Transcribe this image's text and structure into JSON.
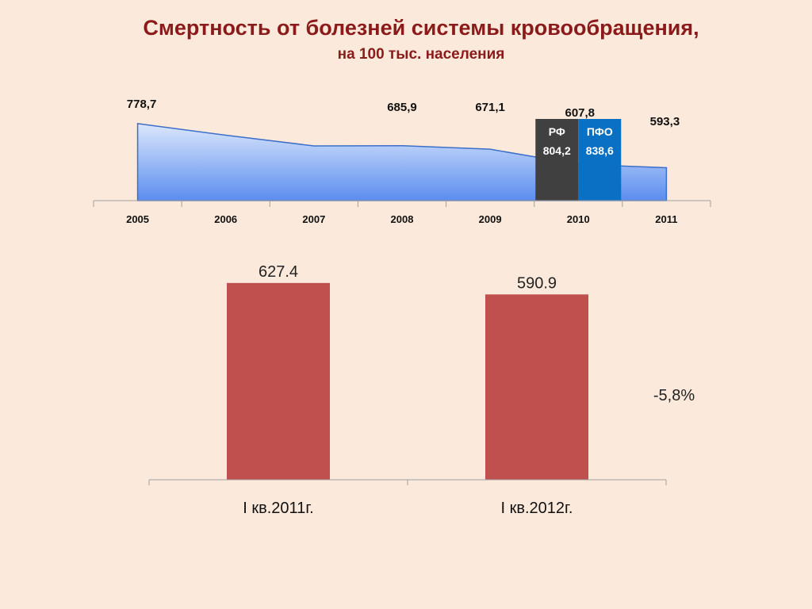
{
  "title": "Смертность от болезней системы кровообращения,",
  "subtitle": "на 100 тыс. населения",
  "chart_data": [
    {
      "type": "area",
      "categories": [
        "2005",
        "2006",
        "2007",
        "2008",
        "2009",
        "2010",
        "2011"
      ],
      "values": [
        778.7,
        730.0,
        685.0,
        685.9,
        671.1,
        607.8,
        593.3
      ],
      "data_labels": [
        "778,7",
        "",
        "",
        "685,9",
        "671,1",
        "607,8",
        "593,3"
      ],
      "color": "#5b8def",
      "grid": false,
      "comparison_bars": [
        {
          "category": "2010",
          "name": "РФ",
          "value": 804.2,
          "value_label": "804,2",
          "color": "#404040"
        },
        {
          "category": "2010",
          "name": "ПФО",
          "value": 838.6,
          "value_label": "838,6",
          "color": "#0a70c4"
        }
      ]
    },
    {
      "type": "bar",
      "categories": [
        "I кв.2011г.",
        "I кв.2012г."
      ],
      "values": [
        627.4,
        590.9
      ],
      "data_labels": [
        "627.4",
        "590.9"
      ],
      "color": "#c0504d",
      "grid": false,
      "annotation": "-5,8%"
    }
  ]
}
